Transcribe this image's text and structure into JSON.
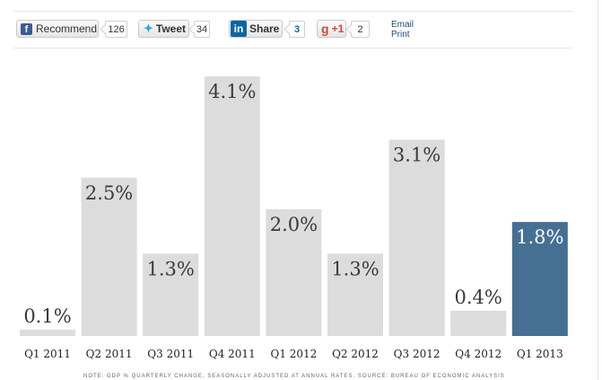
{
  "social": {
    "recommend": {
      "label": "Recommend",
      "count": "126"
    },
    "tweet": {
      "label": "Tweet",
      "count": "34"
    },
    "share": {
      "label": "Share",
      "count": "3"
    },
    "gplus": {
      "label": "+1",
      "count": "2"
    },
    "email_label": "Email",
    "print_label": "Print"
  },
  "chart_data": {
    "type": "bar",
    "title": "",
    "xlabel": "",
    "ylabel": "",
    "categories": [
      "Q1 2011",
      "Q2 2011",
      "Q3 2011",
      "Q4 2011",
      "Q1 2012",
      "Q2 2012",
      "Q3 2012",
      "Q4 2012",
      "Q1 2013"
    ],
    "values": [
      0.1,
      2.5,
      1.3,
      4.1,
      2.0,
      1.3,
      3.1,
      0.4,
      1.8
    ],
    "labels": [
      "0.1%",
      "2.5%",
      "1.3%",
      "4.1%",
      "2.0%",
      "1.3%",
      "3.1%",
      "0.4%",
      "1.8%"
    ],
    "ylim": [
      0,
      4.1
    ],
    "grid": false,
    "colors": {
      "default": "#dcdcdc",
      "highlight": "#456f93"
    },
    "highlight_index": 8
  },
  "note": "NOTE: GDP % QUARTERLY CHANGE, SEASONALLY ADJUSTED AT ANNUAL RATES. SOURCE: BUREAU OF ECONOMIC ANALYSIS"
}
